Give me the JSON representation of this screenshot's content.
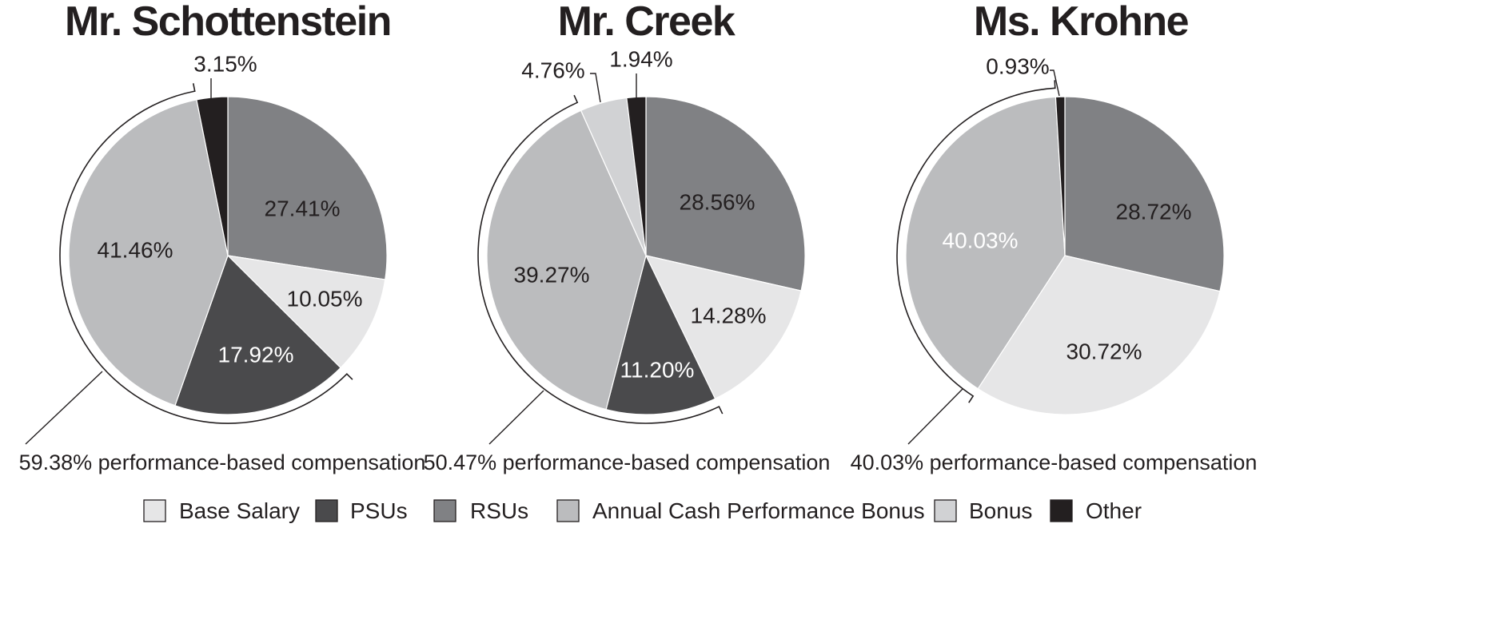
{
  "chart_data": [
    {
      "type": "pie",
      "title": "Mr. Schottenstein",
      "categories": [
        "RSUs",
        "Base Salary",
        "PSUs",
        "Annual Cash Performance Bonus",
        "Bonus",
        "Other"
      ],
      "values": [
        27.41,
        10.05,
        17.92,
        41.46,
        0,
        3.15
      ],
      "labels": [
        "27.41%",
        "10.05%",
        "17.92%",
        "41.46%",
        "",
        "3.15%"
      ],
      "performance_based": {
        "value": 59.38,
        "label": "59.38% performance-based compensation"
      }
    },
    {
      "type": "pie",
      "title": "Mr. Creek",
      "categories": [
        "RSUs",
        "Base Salary",
        "PSUs",
        "Annual Cash Performance Bonus",
        "Bonus",
        "Other"
      ],
      "values": [
        28.56,
        14.28,
        11.2,
        39.27,
        4.76,
        1.94
      ],
      "labels": [
        "28.56%",
        "14.28%",
        "11.20%",
        "39.27%",
        "4.76%",
        "1.94%"
      ],
      "performance_based": {
        "value": 50.47,
        "label": "50.47% performance-based compensation"
      }
    },
    {
      "type": "pie",
      "title": "Ms. Krohne",
      "categories": [
        "RSUs",
        "Base Salary",
        "PSUs",
        "Annual Cash Performance Bonus",
        "Bonus",
        "Other"
      ],
      "values": [
        28.72,
        30.72,
        0,
        40.03,
        0,
        0.93
      ],
      "labels": [
        "28.72%",
        "30.72%",
        "",
        "40.03%",
        "",
        "0.93%"
      ],
      "performance_based": {
        "value": 40.03,
        "label": "40.03% performance-based compensation"
      }
    }
  ],
  "legend": {
    "items": [
      {
        "label": "Base Salary",
        "color": "#e6e6e7"
      },
      {
        "label": "PSUs",
        "color": "#4a4a4c"
      },
      {
        "label": "RSUs",
        "color": "#808184"
      },
      {
        "label": "Annual Cash Performance Bonus",
        "color": "#bbbcbe"
      },
      {
        "label": "Bonus",
        "color": "#d1d2d4"
      },
      {
        "label": "Other",
        "color": "#231f20"
      }
    ]
  },
  "colors": {
    "text": "#231f20",
    "label_on_dark": "#ffffff"
  }
}
